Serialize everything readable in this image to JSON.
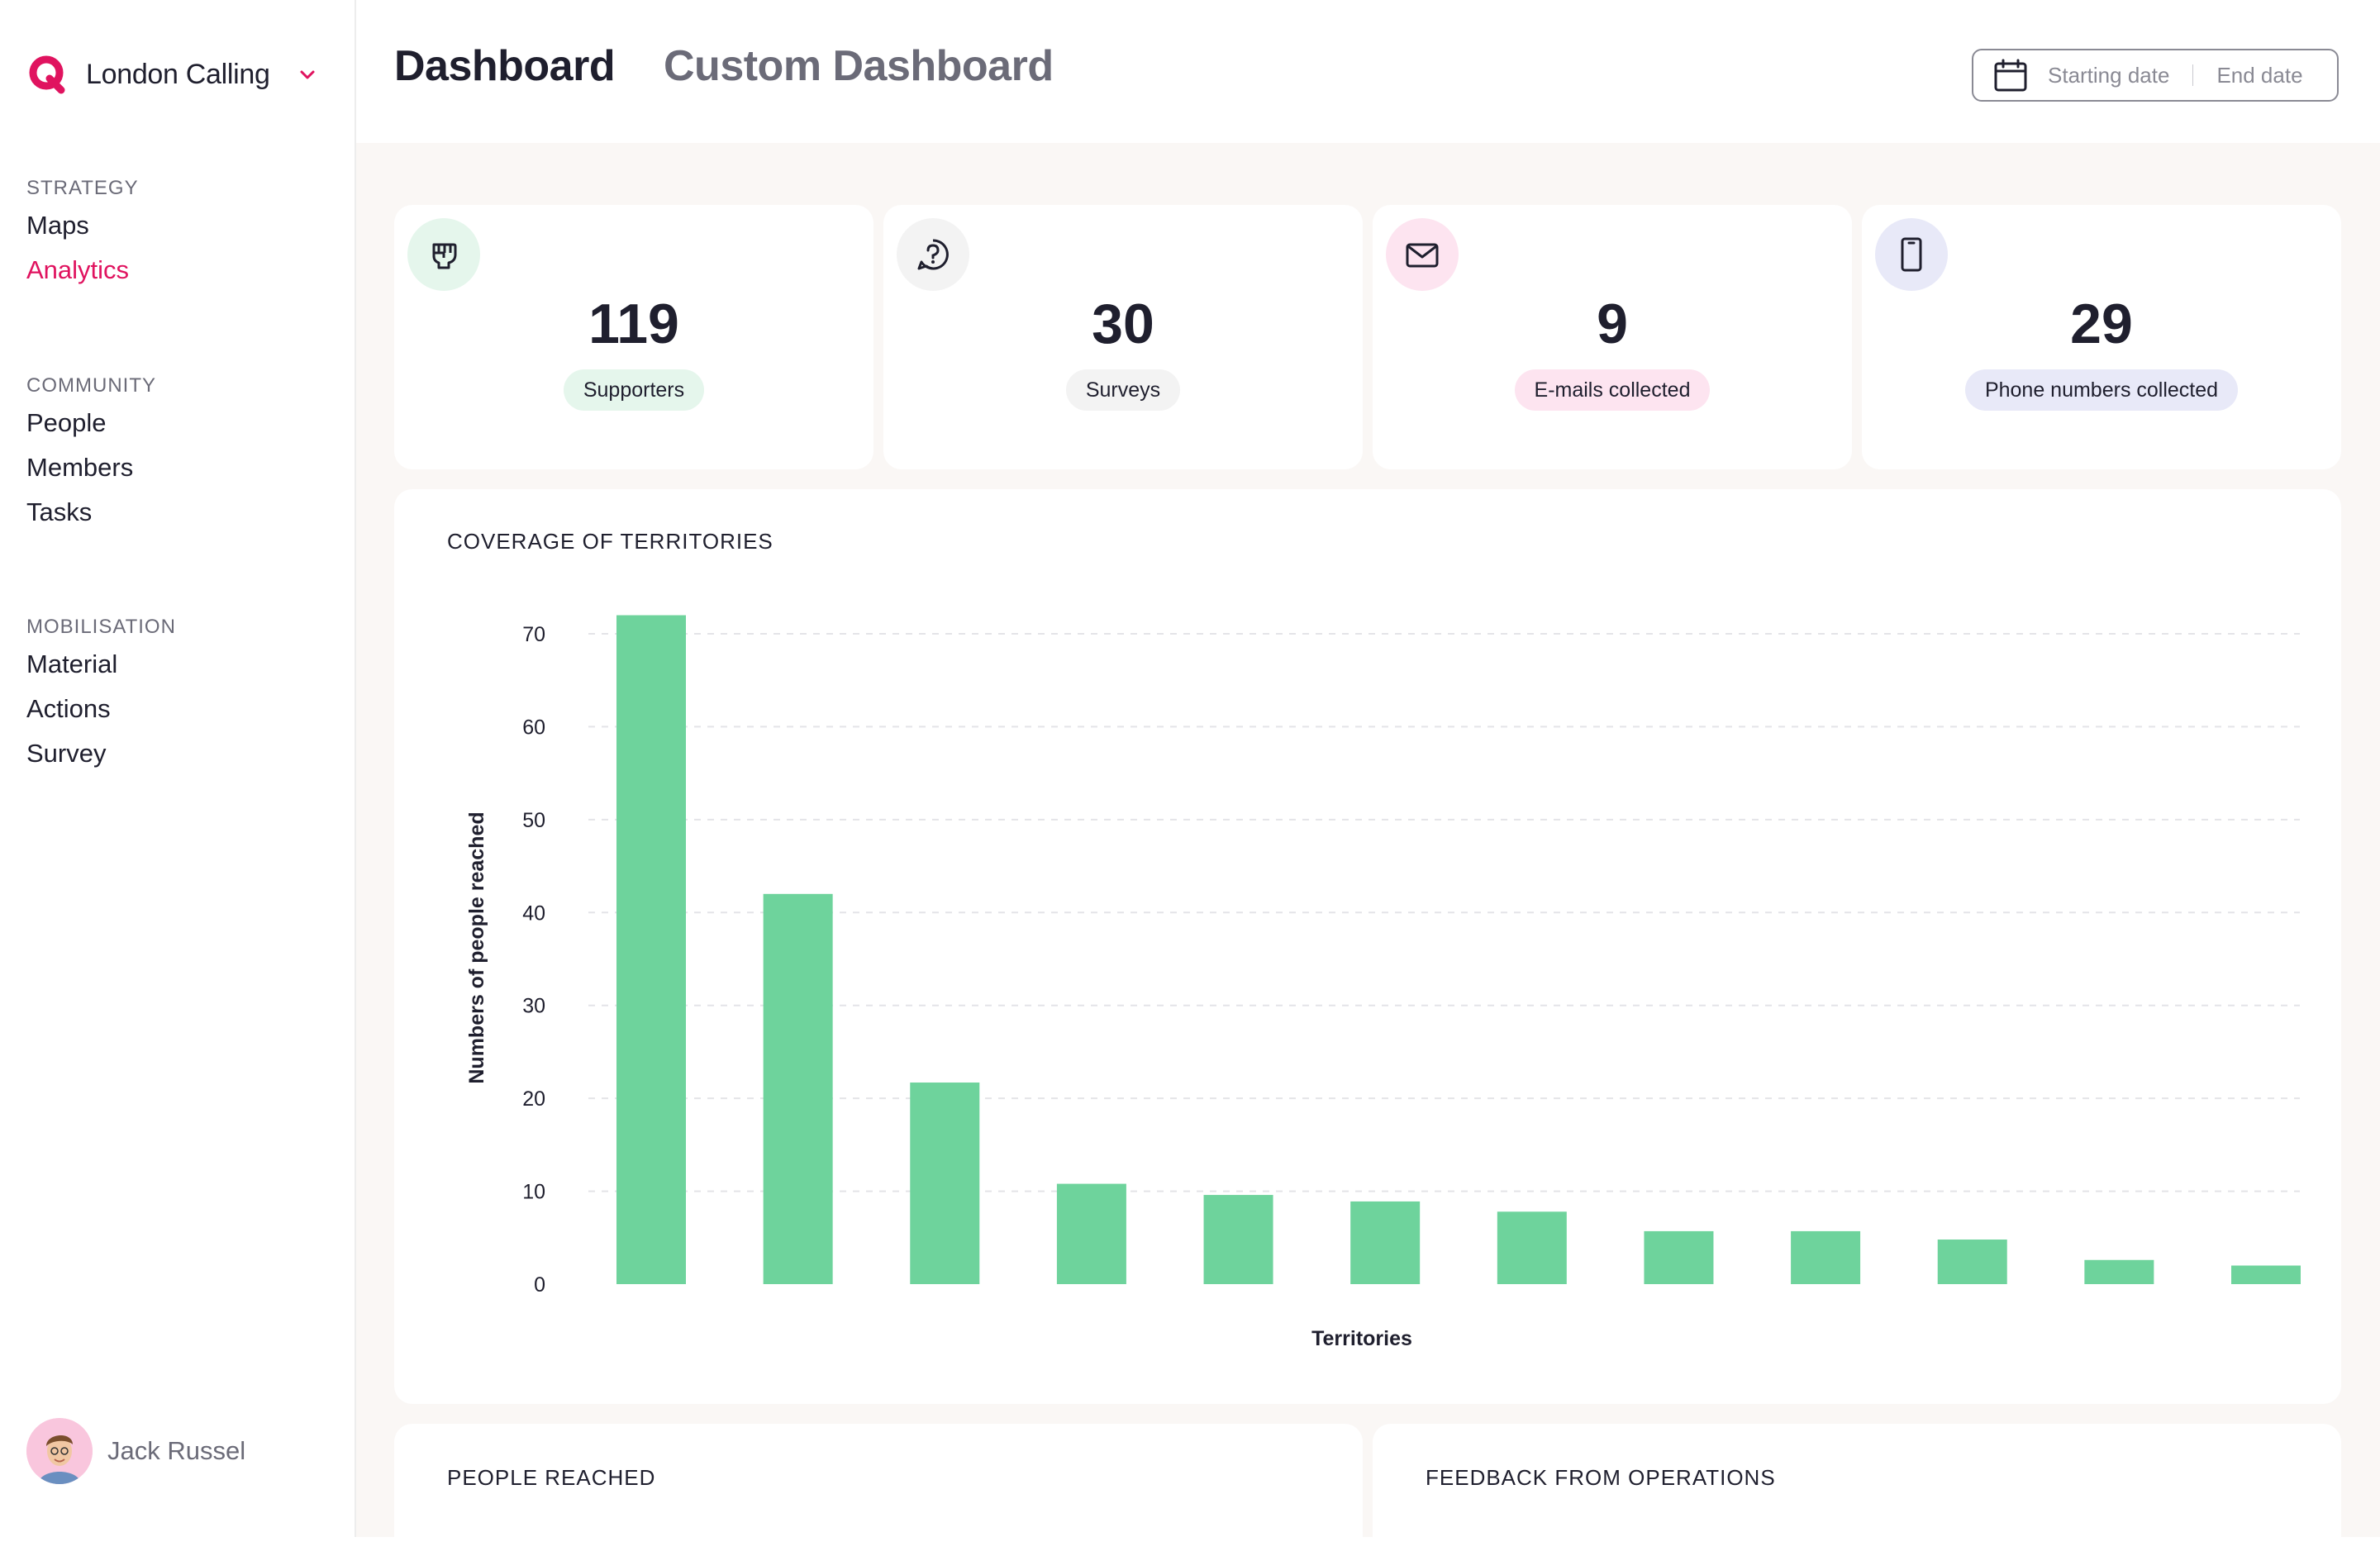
{
  "sidebar": {
    "org_name": "London Calling",
    "sections": [
      {
        "heading": "STRATEGY",
        "items": [
          "Maps",
          "Analytics"
        ]
      },
      {
        "heading": "COMMUNITY",
        "items": [
          "People",
          "Members",
          "Tasks"
        ]
      },
      {
        "heading": "MOBILISATION",
        "items": [
          "Material",
          "Actions",
          "Survey"
        ]
      }
    ],
    "active_item": "Analytics",
    "user_name": "Jack Russel"
  },
  "header": {
    "tabs": [
      "Dashboard",
      "Custom Dashboard"
    ],
    "active_tab": "Dashboard",
    "date_range": {
      "start_placeholder": "Starting date",
      "end_placeholder": "End date"
    }
  },
  "stats": [
    {
      "icon": "fist-icon",
      "value": "119",
      "label": "Supporters",
      "color": "#e5f6ec"
    },
    {
      "icon": "question-chat-icon",
      "value": "30",
      "label": "Surveys",
      "color": "#f3f3f3"
    },
    {
      "icon": "mail-icon",
      "value": "9",
      "label": "E-mails collected",
      "color": "#fde4f0"
    },
    {
      "icon": "phone-icon",
      "value": "29",
      "label": "Phone numbers collected",
      "color": "#e8e9f8"
    }
  ],
  "coverage": {
    "title": "COVERAGE OF TERRITORIES"
  },
  "chart_data": {
    "type": "bar",
    "title": "COVERAGE OF TERRITORIES",
    "xlabel": "Territories",
    "ylabel": "Numbers of people reached",
    "ylim": [
      0,
      70
    ],
    "yticks": [
      0,
      10,
      20,
      30,
      40,
      50,
      60,
      70
    ],
    "grid": true,
    "values": [
      72,
      42,
      21.7,
      10.8,
      9.6,
      8.9,
      7.8,
      5.7,
      5.7,
      4.8,
      2.6,
      2
    ]
  },
  "bottom_cards": {
    "people_reached": "PEOPLE REACHED",
    "feedback": "FEEDBACK FROM OPERATIONS"
  },
  "colors": {
    "accent": "#e0135f",
    "bar": "#6ed39c"
  }
}
